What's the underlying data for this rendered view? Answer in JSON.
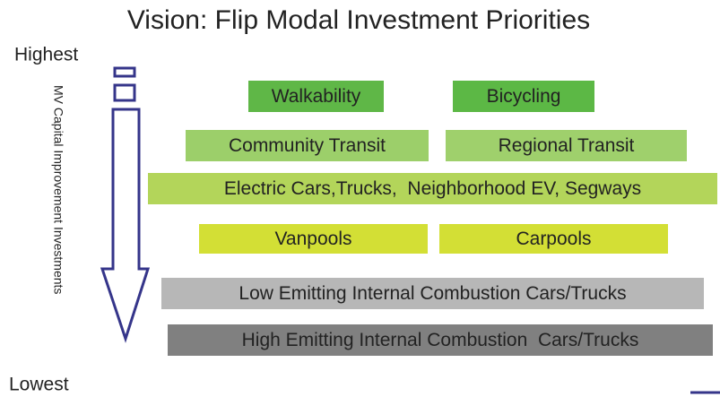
{
  "title": "Vision: Flip Modal Investment Priorities",
  "scale": {
    "top": "Highest",
    "bottom": "Lowest",
    "axis_label": "MV Capital Improvement Investments"
  },
  "boxes": [
    {
      "label": "Walkability"
    },
    {
      "label": "Bicycling"
    },
    {
      "label": "Community Transit"
    },
    {
      "label": "Regional Transit"
    },
    {
      "label": "Electric Cars,Trucks,  Neighborhood EV, Segways"
    },
    {
      "label": "Vanpools"
    },
    {
      "label": "Carpools"
    },
    {
      "label": "Low Emitting Internal Combustion Cars/Trucks"
    },
    {
      "label": "High Emitting Internal Combustion  Cars/Trucks"
    }
  ]
}
